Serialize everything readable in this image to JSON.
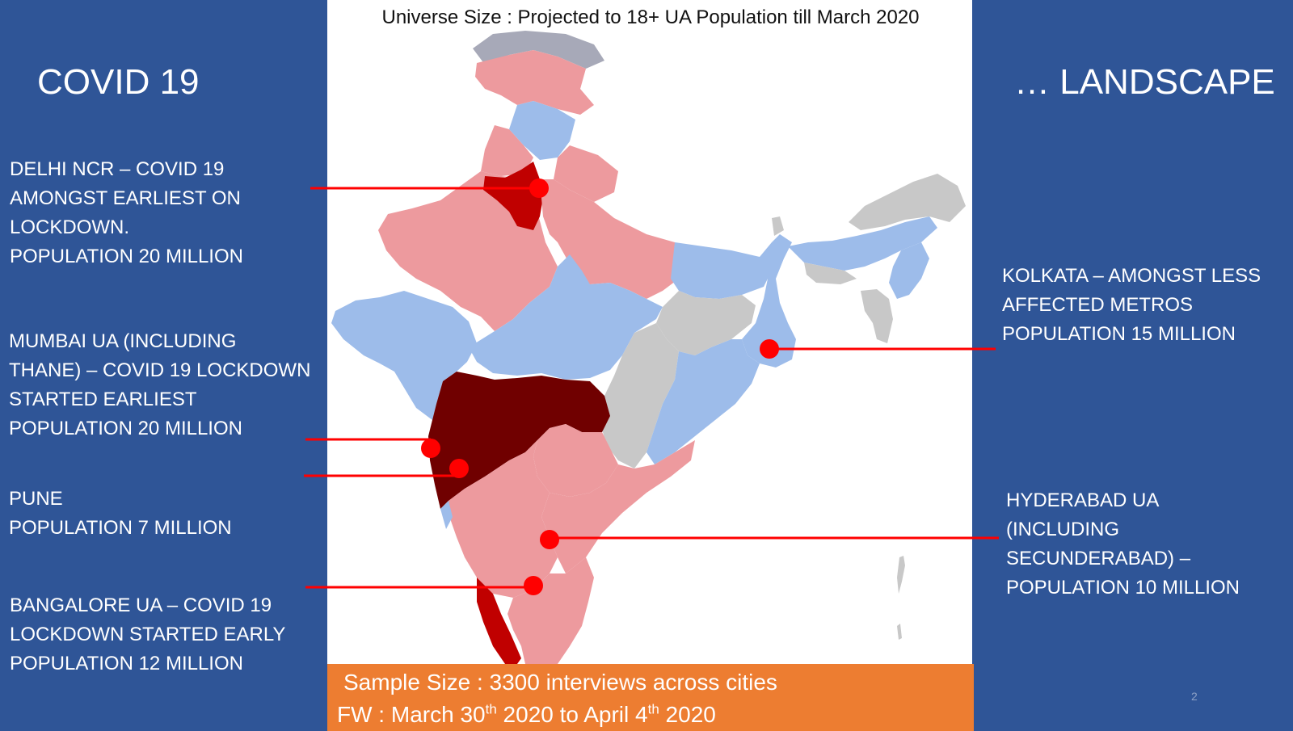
{
  "slide": {
    "title_left": "COVID 19",
    "title_right": "… LANDSCAPE",
    "universe_size": "Universe Size : Projected to 18+ UA Population till March 2020",
    "page_number": "2"
  },
  "map": {
    "region": "India",
    "legend_colors": {
      "dark_red": "#700000",
      "red": "#c00000",
      "pink": "#ed9a9e",
      "light_blue": "#9dbcea",
      "grey": "#c8c8c8",
      "slate": "#a7a9b8"
    },
    "markers_color": "#ff0000"
  },
  "cities": {
    "delhi": {
      "lines": [
        "DELHI NCR – COVID 19",
        "AMONGST EARLIEST ON",
        "LOCKDOWN.",
        "POPULATION 20 MILLION"
      ]
    },
    "mumbai": {
      "lines": [
        "MUMBAI UA (INCLUDING",
        "THANE) – COVID 19 LOCKDOWN",
        "STARTED EARLIEST",
        "POPULATION  20 MILLION"
      ]
    },
    "pune": {
      "lines": [
        "PUNE",
        "POPULATION 7 MILLION"
      ]
    },
    "bangalore": {
      "lines": [
        "BANGALORE UA – COVID 19",
        "LOCKDOWN  STARTED EARLY",
        "POPULATION 12 MILLION"
      ]
    },
    "kolkata": {
      "lines": [
        "KOLKATA – AMONGST LESS",
        "AFFECTED METROS",
        "POPULATION 15 MILLION"
      ]
    },
    "hyderabad": {
      "lines": [
        "HYDERABAD UA",
        "(INCLUDING",
        "SECUNDERABAD)  –",
        "POPULATION 10 MILLION"
      ]
    }
  },
  "sample": {
    "line1": "Sample Size : 3300 interviews across cities",
    "line2_a": "FW : March 30",
    "line2_sup1": "th",
    "line2_b": " 2020 to April 4",
    "line2_sup2": "th",
    "line2_c": " 2020"
  }
}
